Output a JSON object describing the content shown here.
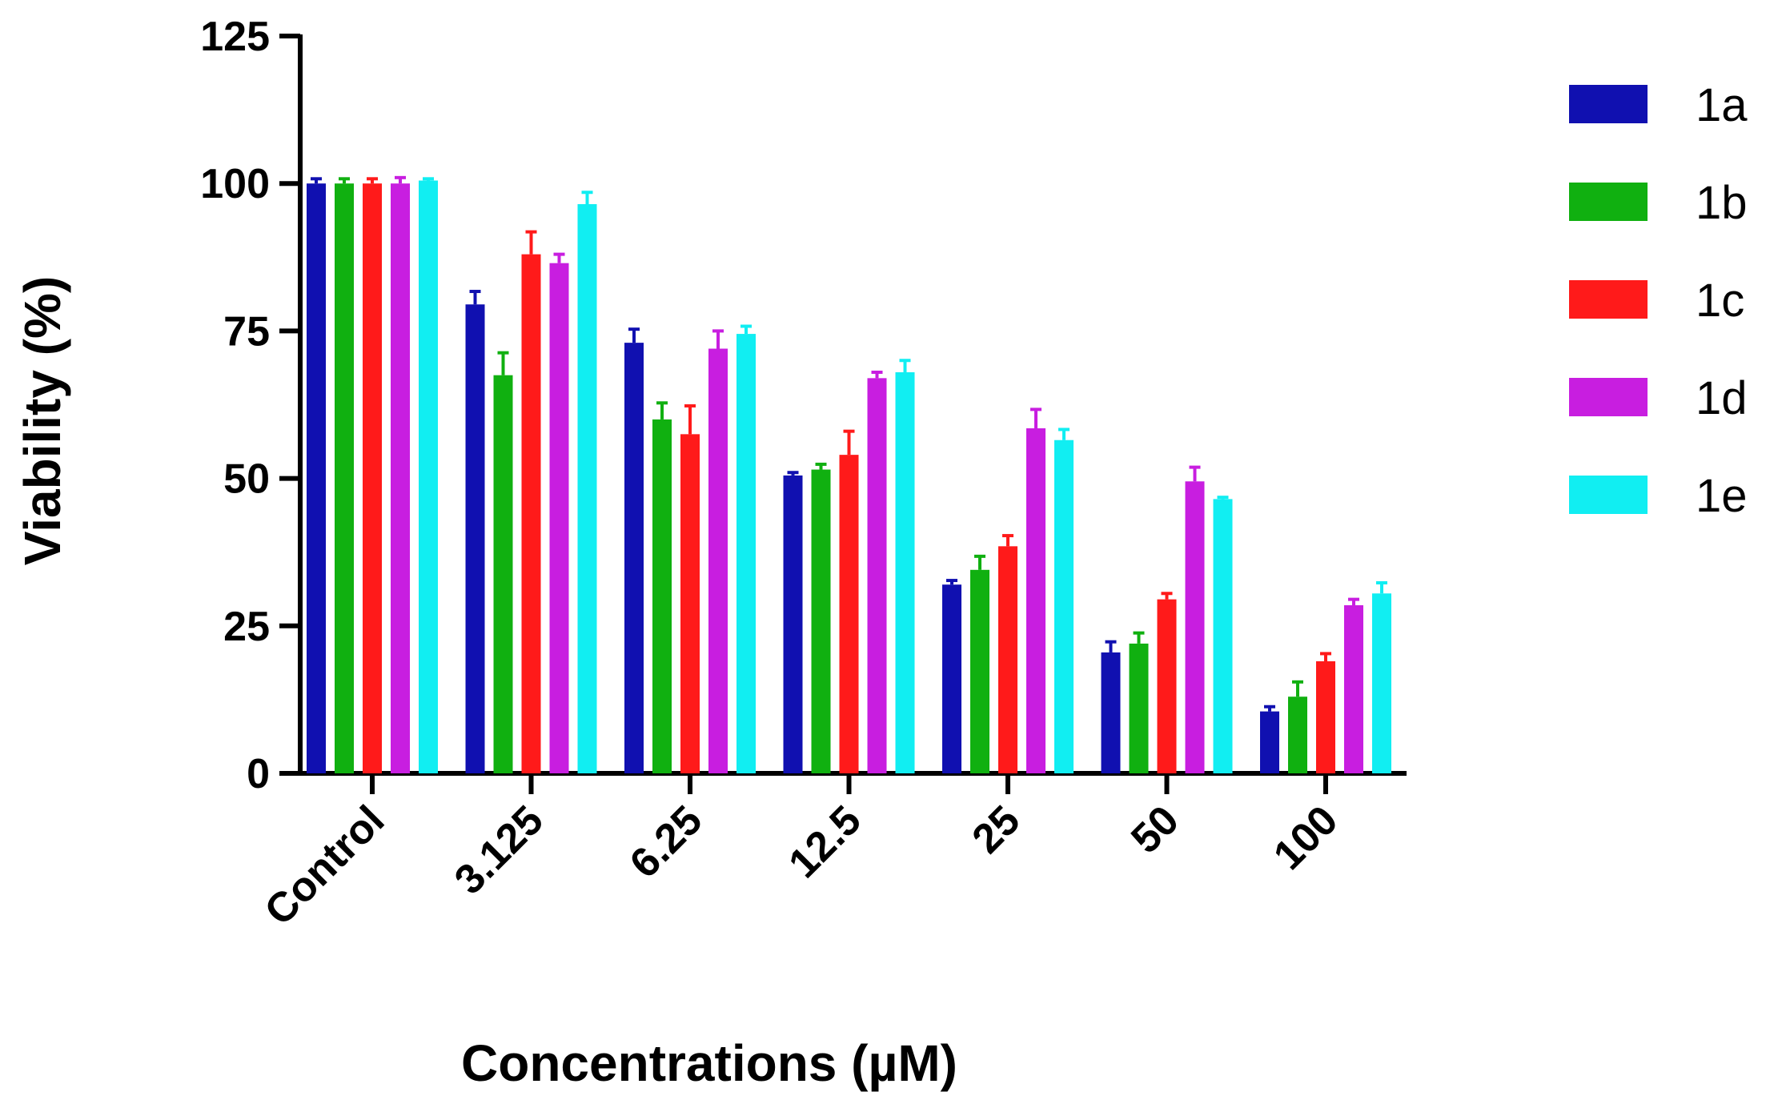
{
  "chart_data": {
    "type": "bar",
    "title": "",
    "xlabel": "Concentrations (µM)",
    "ylabel": "Viability (%)",
    "ylim": [
      0,
      125
    ],
    "yticks": [
      "0",
      "25",
      "50",
      "75",
      "100",
      "125"
    ],
    "ytick_values": [
      0,
      25,
      50,
      75,
      100,
      125
    ],
    "categories": [
      "Control",
      "3.125",
      "6.25",
      "12.5",
      "25",
      "50",
      "100"
    ],
    "legend_position": "right",
    "grid": false,
    "series": [
      {
        "name": "1a",
        "color": "#1010b0",
        "values": [
          100,
          79.5,
          73,
          50.5,
          32,
          20.5,
          10.5
        ],
        "errors": [
          0.8,
          2.2,
          2.3,
          0.5,
          0.7,
          1.8,
          0.8
        ]
      },
      {
        "name": "1b",
        "color": "#10b010",
        "values": [
          100,
          67.5,
          60,
          51.5,
          34.5,
          22,
          13
        ],
        "errors": [
          0.8,
          3.8,
          2.8,
          0.9,
          2.3,
          1.8,
          2.5
        ]
      },
      {
        "name": "1c",
        "color": "#ff1a1a",
        "values": [
          100,
          88,
          57.5,
          54,
          38.5,
          29.5,
          19
        ],
        "errors": [
          0.8,
          3.8,
          4.8,
          4.0,
          1.8,
          1.0,
          1.3
        ]
      },
      {
        "name": "1d",
        "color": "#c81ee0",
        "values": [
          100,
          86.5,
          72,
          67,
          58.5,
          49.5,
          28.5
        ],
        "errors": [
          1.0,
          1.5,
          3.0,
          1.0,
          3.2,
          2.4,
          1.0
        ]
      },
      {
        "name": "1e",
        "color": "#11eef2",
        "values": [
          100.5,
          96.5,
          74.5,
          68,
          56.5,
          46.5,
          30.5
        ],
        "errors": [
          0.3,
          2.0,
          1.3,
          2.0,
          1.8,
          0.3,
          1.8
        ]
      }
    ]
  }
}
